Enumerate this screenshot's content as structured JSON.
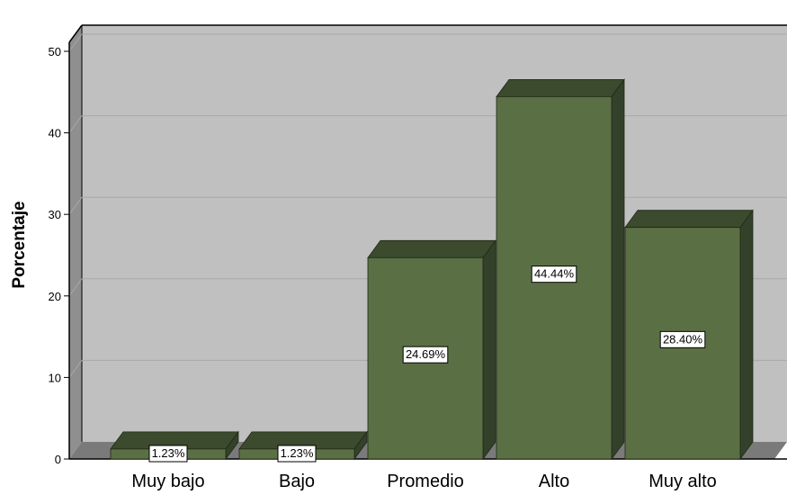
{
  "chart_data": {
    "type": "bar",
    "style": "3d",
    "title": "",
    "xlabel": "",
    "ylabel": "Porcentaje",
    "categories": [
      "Muy bajo",
      "Bajo",
      "Promedio",
      "Alto",
      "Muy alto"
    ],
    "values": [
      1.23,
      1.23,
      24.69,
      44.44,
      28.4
    ],
    "data_labels": [
      "1.23%",
      "1.23%",
      "24.69%",
      "44.44%",
      "28.40%"
    ],
    "ylim": [
      0,
      50
    ],
    "yticks": [
      0,
      10,
      20,
      30,
      40,
      50
    ],
    "ytick_labels": [
      "0",
      "10",
      "20",
      "30",
      "40",
      "50"
    ],
    "grid": true,
    "legend": "none",
    "colors": {
      "bar_front": "#5a7044",
      "bar_top": "#3c4a2d",
      "bar_side": "#34412a",
      "wall": "#c0c0c0",
      "floor": "#7a7a7a",
      "gridline": "#a8a8a8"
    }
  }
}
